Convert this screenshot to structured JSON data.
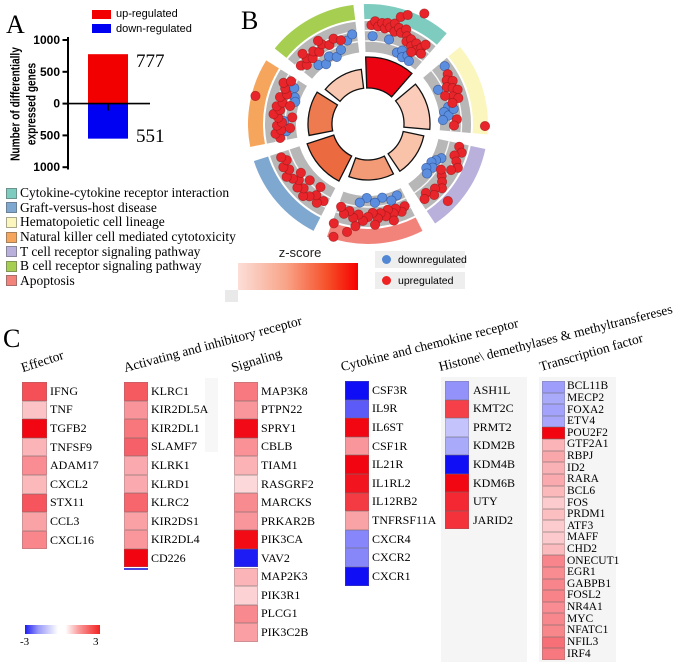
{
  "figure": {
    "panelA": {
      "label": "A",
      "legend": [
        {
          "label": "up-regulated",
          "color": "#f20000"
        },
        {
          "label": "down-regulated",
          "color": "#0000f2"
        }
      ],
      "y_axis_label_line1": "Number of differentially",
      "y_axis_label_line2": "expressed genes",
      "y_ticks": [
        "1000",
        "500",
        "0",
        "500",
        "1000"
      ],
      "up_count_label": "777",
      "down_count_label": "551"
    },
    "pathway_legend": [
      {
        "label": "Cytokine-cytokine receptor interaction",
        "color": "#7ecbbf"
      },
      {
        "label": "Graft-versus-host disease",
        "color": "#7fa8d0"
      },
      {
        "label": "Hematopoietic cell lineage",
        "color": "#faf6be"
      },
      {
        "label": "Natural killer cell mediated cytotoxicity",
        "color": "#f6a55c"
      },
      {
        "label": "T cell receptor signaling pathway",
        "color": "#b9b1dc"
      },
      {
        "label": "B cell receptor signaling pathway",
        "color": "#a6cf52"
      },
      {
        "label": "Apoptosis",
        "color": "#f2837b"
      }
    ],
    "panelB": {
      "label": "B",
      "zscore_legend": {
        "title": "z-score",
        "gradient": [
          "#fcded8",
          "#f8a488",
          "#f54f28",
          "#f70000"
        ]
      },
      "dot_legend": [
        {
          "label": "downregulated",
          "color": "#5187d3"
        },
        {
          "label": "upregulated",
          "color": "#ee2222"
        }
      ]
    },
    "panelC": {
      "label": "C",
      "scale": {
        "min": "-3",
        "max": "3"
      }
    }
  },
  "chart_data": [
    {
      "type": "bar",
      "title": "Number of differentially expressed genes",
      "categories": [
        "up-regulated",
        "down-regulated"
      ],
      "values": [
        777,
        -551
      ],
      "labels": [
        "777",
        "551"
      ],
      "colors": [
        "#f20000",
        "#0000f2"
      ],
      "ylim": [
        -1000,
        1000
      ]
    },
    {
      "type": "circular_go_plot",
      "dot_colors": {
        "up": "#e8252b",
        "down": "#5b8ede"
      },
      "sectors": [
        {
          "name": "Cytokine-cytokine receptor interaction",
          "ring_color": "#7ecbbf",
          "angles": [
            -2,
            41
          ],
          "wedge": {
            "r": 67,
            "color": "#ec0413"
          },
          "dots_up": [
            [
              2,
              99
            ],
            [
              4,
              103
            ],
            [
              6,
              98
            ],
            [
              8,
              102
            ],
            [
              10,
              97
            ],
            [
              11,
              103
            ],
            [
              13,
              99
            ],
            [
              15,
              104
            ],
            [
              16,
              96
            ],
            [
              18,
              101
            ],
            [
              20,
              97
            ],
            [
              22,
              102
            ],
            [
              24,
              96
            ],
            [
              25,
              91
            ],
            [
              27,
              95
            ],
            [
              29,
              89
            ],
            [
              31,
              94
            ],
            [
              33,
              88
            ],
            [
              35,
              93
            ],
            [
              37,
              88
            ],
            [
              17,
              112
            ],
            [
              20,
              116
            ],
            [
              27,
              124
            ],
            [
              31,
              84
            ],
            [
              36,
              98
            ]
          ],
          "dots_down": [
            [
              3,
              88
            ],
            [
              14,
              87
            ],
            [
              22,
              77
            ],
            [
              25,
              81
            ],
            [
              27,
              75
            ],
            [
              30,
              79
            ],
            [
              33,
              75
            ]
          ]
        },
        {
          "name": "Hematopoietic cell lineage",
          "ring_color": "#faf6be",
          "angles": [
            50,
            95
          ],
          "wedge": {
            "r": 62,
            "color": "#fbccba"
          },
          "dots_up": [
            [
              58,
              94
            ],
            [
              61,
              90
            ],
            [
              63,
              95
            ],
            [
              65,
              87
            ],
            [
              67,
              92
            ],
            [
              69,
              96
            ],
            [
              72,
              89
            ],
            [
              74,
              94
            ],
            [
              70,
              82
            ],
            [
              76,
              87
            ],
            [
              87,
              89
            ],
            [
              91,
              86
            ],
            [
              91,
              117
            ]
          ],
          "dots_down": [
            [
              53,
              96
            ],
            [
              64,
              78
            ],
            [
              78,
              82
            ],
            [
              81,
              77
            ],
            [
              84,
              81
            ],
            [
              87,
              75
            ],
            [
              80,
              87
            ]
          ]
        },
        {
          "name": "T cell receptor signaling pathway",
          "ring_color": "#b9b1dc",
          "angles": [
            102,
            146
          ],
          "wedge": {
            "r": 57,
            "color": "#f8c3a9"
          },
          "dots_up": [
            [
              104,
              94
            ],
            [
              107,
              98
            ],
            [
              110,
              92
            ],
            [
              113,
              96
            ],
            [
              116,
              100
            ],
            [
              119,
              95
            ],
            [
              125,
              90
            ],
            [
              128,
              94
            ],
            [
              131,
              98
            ],
            [
              134,
              93
            ],
            [
              137,
              97
            ],
            [
              140,
              90
            ],
            [
              143,
              94
            ],
            [
              134,
              111
            ],
            [
              122,
              86
            ]
          ],
          "dots_down": [
            [
              115,
              81
            ],
            [
              118,
              77
            ],
            [
              121,
              74
            ],
            [
              124,
              78
            ],
            [
              127,
              73
            ],
            [
              130,
              77
            ]
          ]
        },
        {
          "name": "Apoptosis",
          "ring_color": "#f2837b",
          "angles": [
            153,
            200
          ],
          "wedge": {
            "r": 56,
            "color": "#f39b77"
          },
          "dots_up": [
            [
              156,
              90
            ],
            [
              159,
              94
            ],
            [
              162,
              89
            ],
            [
              164,
              93
            ],
            [
              167,
              88
            ],
            [
              169,
              94
            ],
            [
              172,
              90
            ],
            [
              174,
              95
            ],
            [
              177,
              89
            ],
            [
              180,
              93
            ],
            [
              183,
              97
            ],
            [
              186,
              91
            ],
            [
              189,
              95
            ],
            [
              192,
              89
            ],
            [
              195,
              93
            ],
            [
              198,
              87
            ],
            [
              165,
              100
            ],
            [
              176,
              101
            ],
            [
              187,
              103
            ],
            [
              191,
              110
            ],
            [
              197,
              118
            ],
            [
              199,
              105
            ]
          ],
          "dots_down": [
            [
              158,
              77
            ],
            [
              163,
              80
            ],
            [
              169,
              75
            ],
            [
              175,
              79
            ],
            [
              181,
              74
            ],
            [
              186,
              79
            ]
          ]
        },
        {
          "name": "Graft-versus-host disease",
          "ring_color": "#7fa8d0",
          "angles": [
            207,
            252
          ],
          "wedge": {
            "r": 64,
            "color": "#ec6a40"
          },
          "dots_up": [
            [
              210,
              89
            ],
            [
              213,
              94
            ],
            [
              216,
              88
            ],
            [
              219,
              93
            ],
            [
              222,
              97
            ],
            [
              225,
              91
            ],
            [
              228,
              95
            ],
            [
              231,
              89
            ],
            [
              234,
              93
            ],
            [
              237,
              97
            ],
            [
              240,
              91
            ],
            [
              243,
              95
            ],
            [
              246,
              89
            ],
            [
              249,
              93
            ],
            [
              226,
              81
            ],
            [
              234,
              83
            ],
            [
              217,
              79
            ]
          ],
          "dots_down": []
        },
        {
          "name": "Natural killer cell mediated cytotoxicity",
          "ring_color": "#f6a55c",
          "angles": [
            259,
            302
          ],
          "wedge": {
            "r": 60,
            "color": "#ee7a50"
          },
          "dots_up": [
            [
              261,
              89
            ],
            [
              264,
              93
            ],
            [
              266,
              87
            ],
            [
              269,
              91
            ],
            [
              271,
              86
            ],
            [
              274,
              90
            ],
            [
              276,
              95
            ],
            [
              279,
              89
            ],
            [
              281,
              93
            ],
            [
              284,
              88
            ],
            [
              287,
              92
            ],
            [
              290,
              86
            ],
            [
              293,
              90
            ],
            [
              296,
              94
            ],
            [
              299,
              88
            ],
            [
              267,
              78
            ],
            [
              275,
              76
            ],
            [
              283,
              80
            ],
            [
              284,
              116
            ]
          ],
          "dots_down": [
            [
              265,
              82
            ],
            [
              272,
              84
            ],
            [
              290,
              78
            ],
            [
              296,
              82
            ],
            [
              287,
              76
            ]
          ]
        },
        {
          "name": "B cell receptor signaling pathway",
          "ring_color": "#a6cf52",
          "angles": [
            309,
            353
          ],
          "wedge": {
            "r": 55,
            "color": "#f9c8b2"
          },
          "dots_up": [
            [
              311,
              89
            ],
            [
              314,
              85
            ],
            [
              317,
              90
            ],
            [
              320,
              86
            ],
            [
              323,
              91
            ],
            [
              326,
              87
            ],
            [
              330,
              92
            ],
            [
              334,
              88
            ],
            [
              338,
              92
            ],
            [
              342,
              88
            ],
            [
              317,
              96
            ],
            [
              329,
              97
            ]
          ],
          "dots_down": [
            [
              320,
              77
            ],
            [
              325,
              73
            ],
            [
              330,
              78
            ],
            [
              335,
              74
            ],
            [
              340,
              79
            ],
            [
              346,
              86
            ],
            [
              350,
              91
            ]
          ]
        }
      ]
    },
    {
      "type": "heatmap",
      "scale": {
        "min": -3,
        "max": 3,
        "colors": [
          "#1d1df2",
          "#ffffff",
          "#f32222"
        ]
      },
      "columns": [
        {
          "title": "Effector",
          "genes": [
            "IFNG",
            "TNF",
            "TGFB2",
            "TNFSF9",
            "ADAM17",
            "CXCL2",
            "STX11",
            "CCL3",
            "CXCL16"
          ],
          "values": [
            2.1,
            0.72,
            2.98,
            0.89,
            1.36,
            0.84,
            2.03,
            1.1,
            1.45
          ]
        },
        {
          "title": "Activating and inhibitory receptor",
          "genes": [
            "KLRC1",
            "KIR2DL5A",
            "KIR2DL1",
            "SLAMF7",
            "KLRK1",
            "KLRD1",
            "KLRC2",
            "KIR2DS1",
            "KIR2DL4",
            "CD226"
          ],
          "values": [
            1.98,
            1.27,
            1.63,
            1.9,
            1.02,
            1.01,
            1.84,
            1.12,
            1.24,
            3.0
          ]
        },
        {
          "title": "Signaling",
          "genes": [
            "MAP3K8",
            "PTPN22",
            "SPRY1",
            "CBLB",
            "TIAM1",
            "RASGRF2",
            "MARCKS",
            "PRKAR2B",
            "PIK3CA",
            "VAV2",
            "MAP2K3",
            "PIK3R1",
            "PLCG1",
            "PIK3C2B"
          ],
          "values": [
            1.6,
            1.25,
            2.93,
            1.31,
            0.91,
            0.46,
            1.39,
            1.26,
            2.94,
            -2.75,
            0.88,
            0.53,
            1.4,
            1.14
          ]
        },
        {
          "title": "Cytokine and chemokine receptor",
          "genes": [
            "CSF3R",
            "IL9R",
            "IL6ST",
            "CSF1R",
            "IL21R",
            "IL1RL2",
            "IL12RB2",
            "TNFRSF11A",
            "CXCR4",
            "CXCR2",
            "CXCR1"
          ],
          "values": [
            -2.93,
            -1.98,
            2.98,
            1.26,
            3.0,
            2.82,
            2.36,
            1.1,
            -1.46,
            -1.45,
            -2.92
          ]
        },
        {
          "title": "Histone\\ demethylases & methyltransfereses",
          "genes": [
            "ASH1L",
            "KMT2C",
            "PRMT2",
            "KDM2B",
            "KDM4B",
            "KDM6B",
            "UTY",
            "JARID2"
          ],
          "values": [
            -1.32,
            2.29,
            -0.72,
            -1.03,
            -2.92,
            2.98,
            2.58,
            2.46
          ]
        },
        {
          "title": "Transcription factor",
          "genes": [
            "BCL11B",
            "MECP2",
            "FOXA2",
            "ETV4",
            "POU2F2",
            "GTF2A1",
            "RBPJ",
            "ID2",
            "RARA",
            "BCL6",
            "FOS",
            "PRDM1",
            "ATF3",
            "MAFF",
            "CHD2",
            "ONECUT1",
            "EGR1",
            "GABPB1",
            "FOSL2",
            "NR4A1",
            "MYC",
            "NFATC1",
            "NFIL3",
            "IRF4"
          ],
          "values": [
            -1.18,
            -1.03,
            -1.11,
            -1.07,
            2.99,
            0.89,
            1.05,
            0.93,
            1.01,
            0.84,
            0.62,
            0.77,
            0.62,
            0.63,
            0.82,
            1.46,
            1.38,
            1.46,
            1.48,
            1.37,
            1.43,
            1.44,
            1.71,
            1.62
          ]
        }
      ]
    }
  ]
}
